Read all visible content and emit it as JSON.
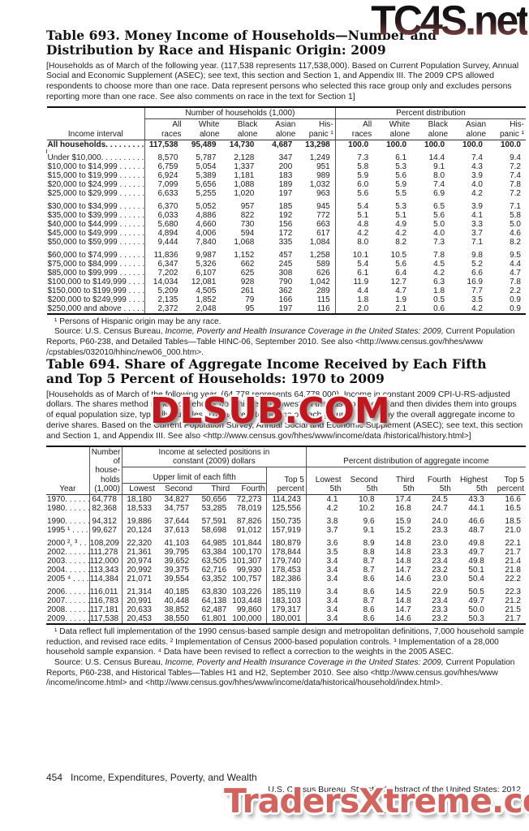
{
  "watermarks": {
    "top": "TC4S.net",
    "middle": "DLSUB.COM",
    "bottom": "TradersXtreme.com"
  },
  "table693": {
    "title": "Table 693. Money Income of Households—Number and Distribution by Race and Hispanic Origin: 2009",
    "note": "[Households as of March of the following year. (117,538 represents 117,538,000). Based on Current Population Survey, Annual Social and Economic Supplement (ASEC); see text, this section and Section 1, and Appendix III. The 2009 CPS allowed respondents to choose more than one race. Data represent persons who selected this race group only and excludes persons reporting more than one race. See also comments on race in the text for Section 1]",
    "stub_header": "Income interval",
    "group_headers": [
      "Number of households (1,000)",
      "Percent distribution"
    ],
    "sub_headers": [
      "All\nraces",
      "White\nalone",
      "Black\nalone",
      "Asian\nalone",
      "His-\npanic ¹"
    ],
    "total_row": {
      "label": "All households. . . . . . . . . .",
      "values": [
        "117,538",
        "95,489",
        "14,730",
        "4,687",
        "13,298",
        "100.0",
        "100.0",
        "100.0",
        "100.0",
        "100.0"
      ]
    },
    "row_groups": [
      [
        [
          "Under $10,000. . . . . . . . . . . .",
          "8,570",
          "5,787",
          "2,128",
          "347",
          "1,249",
          "7.3",
          "6.1",
          "14.4",
          "7.4",
          "9.4"
        ],
        [
          "$10,000 to $14,999 . . . . . . . .",
          "6,759",
          "5,054",
          "1,337",
          "200",
          "951",
          "5.8",
          "5.3",
          "9.1",
          "4.3",
          "7.2"
        ],
        [
          "$15,000 to $19,999 . . . . . . . .",
          "6,924",
          "5,389",
          "1,181",
          "183",
          "989",
          "5.9",
          "5.6",
          "8.0",
          "3.9",
          "7.4"
        ],
        [
          "$20,000 to $24,999 . . . . . . . .",
          "7,099",
          "5,656",
          "1,088",
          "189",
          "1,032",
          "6.0",
          "5.9",
          "7.4",
          "4.0",
          "7.8"
        ],
        [
          "$25,000 to $29,999 . . . . . . . .",
          "6,633",
          "5,255",
          "1,020",
          "197",
          "963",
          "5.6",
          "5.5",
          "6.9",
          "4.2",
          "7.2"
        ]
      ],
      [
        [
          "$30,000 to $34,999 . . . . . . . .",
          "6,370",
          "5,052",
          "957",
          "185",
          "945",
          "5.4",
          "5.3",
          "6.5",
          "3.9",
          "7.1"
        ],
        [
          "$35,000 to $39,999 . . . . . . . .",
          "6,033",
          "4,886",
          "822",
          "192",
          "772",
          "5.1",
          "5.1",
          "5.6",
          "4.1",
          "5.8"
        ],
        [
          "$40,000 to $44,999 . . . . . . . .",
          "5,680",
          "4,660",
          "730",
          "156",
          "663",
          "4.8",
          "4.9",
          "5.0",
          "3.3",
          "5.0"
        ],
        [
          "$45,000 to $49,999 . . . . . . . .",
          "4,894",
          "4,006",
          "594",
          "172",
          "617",
          "4.2",
          "4.2",
          "4.0",
          "3.7",
          "4.6"
        ],
        [
          "$50,000 to $59,999 . . . . . . . .",
          "9,444",
          "7,840",
          "1,068",
          "335",
          "1,084",
          "8.0",
          "8.2",
          "7.3",
          "7.1",
          "8.2"
        ]
      ],
      [
        [
          "$60,000 to $74,999 . . . . . . . .",
          "11,836",
          "9,987",
          "1,152",
          "457",
          "1,258",
          "10.1",
          "10.5",
          "7.8",
          "9.8",
          "9.5"
        ],
        [
          "$75,000 to $84,999 . . . . . . . .",
          "6,347",
          "5,326",
          "662",
          "245",
          "589",
          "5.4",
          "5.6",
          "4.5",
          "5.2",
          "4.4"
        ],
        [
          "$85,000 to $99,999 . . . . . . . .",
          "7,202",
          "6,107",
          "625",
          "308",
          "626",
          "6.1",
          "6.4",
          "4.2",
          "6.6",
          "4.7"
        ],
        [
          "$100,000 to $149,999 . . . . . .",
          "14,034",
          "12,081",
          "928",
          "790",
          "1,042",
          "11.9",
          "12.7",
          "6.3",
          "16.9",
          "7.8"
        ],
        [
          "$150,000 to $199,999 . . . . . .",
          "5,209",
          "4,505",
          "261",
          "362",
          "289",
          "4.4",
          "4.7",
          "1.8",
          "7.7",
          "2.2"
        ],
        [
          "$200,000 to $249,999 . . . . . .",
          "2,135",
          "1,852",
          "79",
          "166",
          "115",
          "1.8",
          "1.9",
          "0.5",
          "3.5",
          "0.9"
        ],
        [
          "$250,000 and above . . . . . . .",
          "2,372",
          "2,048",
          "95",
          "197",
          "116",
          "2.0",
          "2.1",
          "0.6",
          "4.2",
          "0.9"
        ]
      ]
    ],
    "footnote": "¹ Persons of Hispanic origin may be any race.",
    "source_prefix": "Source: U.S. Census Bureau, ",
    "source_italic": "Income, Poverty and Health Insurance Coverage in the United States: 2009,",
    "source_suffix": " Current Population Reports, P60-238, and Detailed Tables—Table HINC-06, September 2010. See also <http://www.census.gov/hhes/www /cpstables/032010/hhinc/new06_000.htm>."
  },
  "table694": {
    "title": "Table 694. Share of Aggregate Income Received by Each Fifth and Top 5 Percent of Households: 1970 to 2009",
    "note": "[Households as of March of the following year, (64,778 represents 64,778,000). Income in constant 2009 CPI-U-RS-adjusted dollars. The shares method ranks households from highest to lowest on the basis of income and then divides them into groups of equal population size, typically quintiles. The aggregate income of each group is divided by the overall aggregate income to derive shares. Based on the Current Population Survey, Annual Social and Economic Supplement (ASEC); see text, this section and Section 1, and Appendix III. See also <http://www.census.gov/hhes/www/income/data /historical/history.html>]",
    "stub_header": "Year",
    "households_header": "Number\nof\nhouse-\nholds\n(1,000)",
    "income_group_header": "Income at selected positions in\nconstant (2009) dollars",
    "upper_limit_header": "Upper limit of each fifth",
    "fifth_headers": [
      "Lowest",
      "Second",
      "Third",
      "Fourth"
    ],
    "top5_header": "Top 5\npercent",
    "percent_group_header": "Percent distribution of aggregate income",
    "percent_headers": [
      "Lowest\n5th",
      "Second\n5th",
      "Third\n5th",
      "Fourth\n5th",
      "Highest\n5th",
      "Top 5\npercent"
    ],
    "row_groups": [
      [
        [
          "1970. . . . . .",
          "64,778",
          "18,180",
          "34,827",
          "50,656",
          "72,273",
          "114,243",
          "4.1",
          "10.8",
          "17.4",
          "24.5",
          "43.3",
          "16.6"
        ],
        [
          "1980. . . . . .",
          "82,368",
          "18,533",
          "34,757",
          "53,285",
          "78,019",
          "125,556",
          "4.2",
          "10.2",
          "16.8",
          "24.7",
          "44.1",
          "16.5"
        ]
      ],
      [
        [
          "1990. . . . . .",
          "94,312",
          "19,886",
          "37,644",
          "57,591",
          "87,826",
          "150,735",
          "3.8",
          "9.6",
          "15.9",
          "24.0",
          "46.6",
          "18.5"
        ],
        [
          "1995 ¹ . . . .",
          "99,627",
          "20,124",
          "37,613",
          "58,698",
          "91,012",
          "157,919",
          "3.7",
          "9.1",
          "15.2",
          "23.3",
          "48.7",
          "21.0"
        ]
      ],
      [
        [
          "2000 ², ³ . . .",
          "108,209",
          "22,320",
          "41,103",
          "64,985",
          "101,844",
          "180,879",
          "3.6",
          "8.9",
          "14.8",
          "23.0",
          "49.8",
          "22.1"
        ],
        [
          "2002. . . . . .",
          "111,278",
          "21,361",
          "39,795",
          "63,384",
          "100,170",
          "178,844",
          "3.5",
          "8.8",
          "14.8",
          "23.3",
          "49.7",
          "21.7"
        ],
        [
          "2003. . . . . .",
          "112,000",
          "20,974",
          "39,652",
          "63,505",
          "101,307",
          "179,740",
          "3.4",
          "8.7",
          "14.8",
          "23.4",
          "49.8",
          "21.4"
        ],
        [
          "2004. . . . . .",
          "113,343",
          "20,992",
          "39,375",
          "62,716",
          "99,930",
          "178,453",
          "3.4",
          "8.7",
          "14.7",
          "23.2",
          "50.1",
          "21.8"
        ],
        [
          "2005 ⁴ . . . .",
          "114,384",
          "21,071",
          "39,554",
          "63,352",
          "100,757",
          "182,386",
          "3.4",
          "8.6",
          "14.6",
          "23.0",
          "50.4",
          "22.2"
        ]
      ],
      [
        [
          "2006. . . . . .",
          "116,011",
          "21,314",
          "40,185",
          "63,830",
          "103,226",
          "185,119",
          "3.4",
          "8.6",
          "14.5",
          "22.9",
          "50.5",
          "22.3"
        ],
        [
          "2007. . . . . .",
          "116,783",
          "20,991",
          "40,448",
          "64,138",
          "103,448",
          "183,103",
          "3.4",
          "8.7",
          "14.8",
          "23.4",
          "49.7",
          "21.2"
        ],
        [
          "2008. . . . . .",
          "117,181",
          "20,633",
          "38,852",
          "62,487",
          "99,860",
          "179,317",
          "3.4",
          "8.6",
          "14.7",
          "23.3",
          "50.0",
          "21.5"
        ],
        [
          "2009. . . . . .",
          "117,538",
          "20,453",
          "38,550",
          "61,801",
          "100,000",
          "180,001",
          "3.4",
          "8.6",
          "14.6",
          "23.2",
          "50.3",
          "21.7"
        ]
      ]
    ],
    "footnotes": "¹ Data reflect full implementation of the 1990 census-based sample design and metropolitan definitions, 7,000 household sample reduction, and revised race edits. ² Implementation of Census 2000-based population controls. ³ Implementation of a 28,000 household sample expansion. ⁴ Data have been revised to reflect a correction to the weights in the 2005 ASEC.",
    "source_prefix": "Source: U.S. Census Bureau, ",
    "source_italic": "Income, Poverty and Health Insurance Coverage in the United States: 2009,",
    "source_suffix": " Current Population Reports, P60-238, and Historical Tables—Tables H1 and H2, September 2010. See also <http://www.census.gov/hhes/www /income/income.html> and <http://www.census.gov/hhes/www/income/data/historical/household/index.html>."
  },
  "footer": {
    "page_number": "454",
    "section_title": "Income, Expenditures, Poverty, and Wealth",
    "credit": "U.S. Census Bureau, Statistical Abstract of the United States: 2012"
  },
  "colors": {
    "watermark_red": "#c4161d",
    "watermark_salmon": "#d2635d",
    "watermark_dark_gradient_end": "#8a4a42",
    "text": "#1a1a1a"
  }
}
